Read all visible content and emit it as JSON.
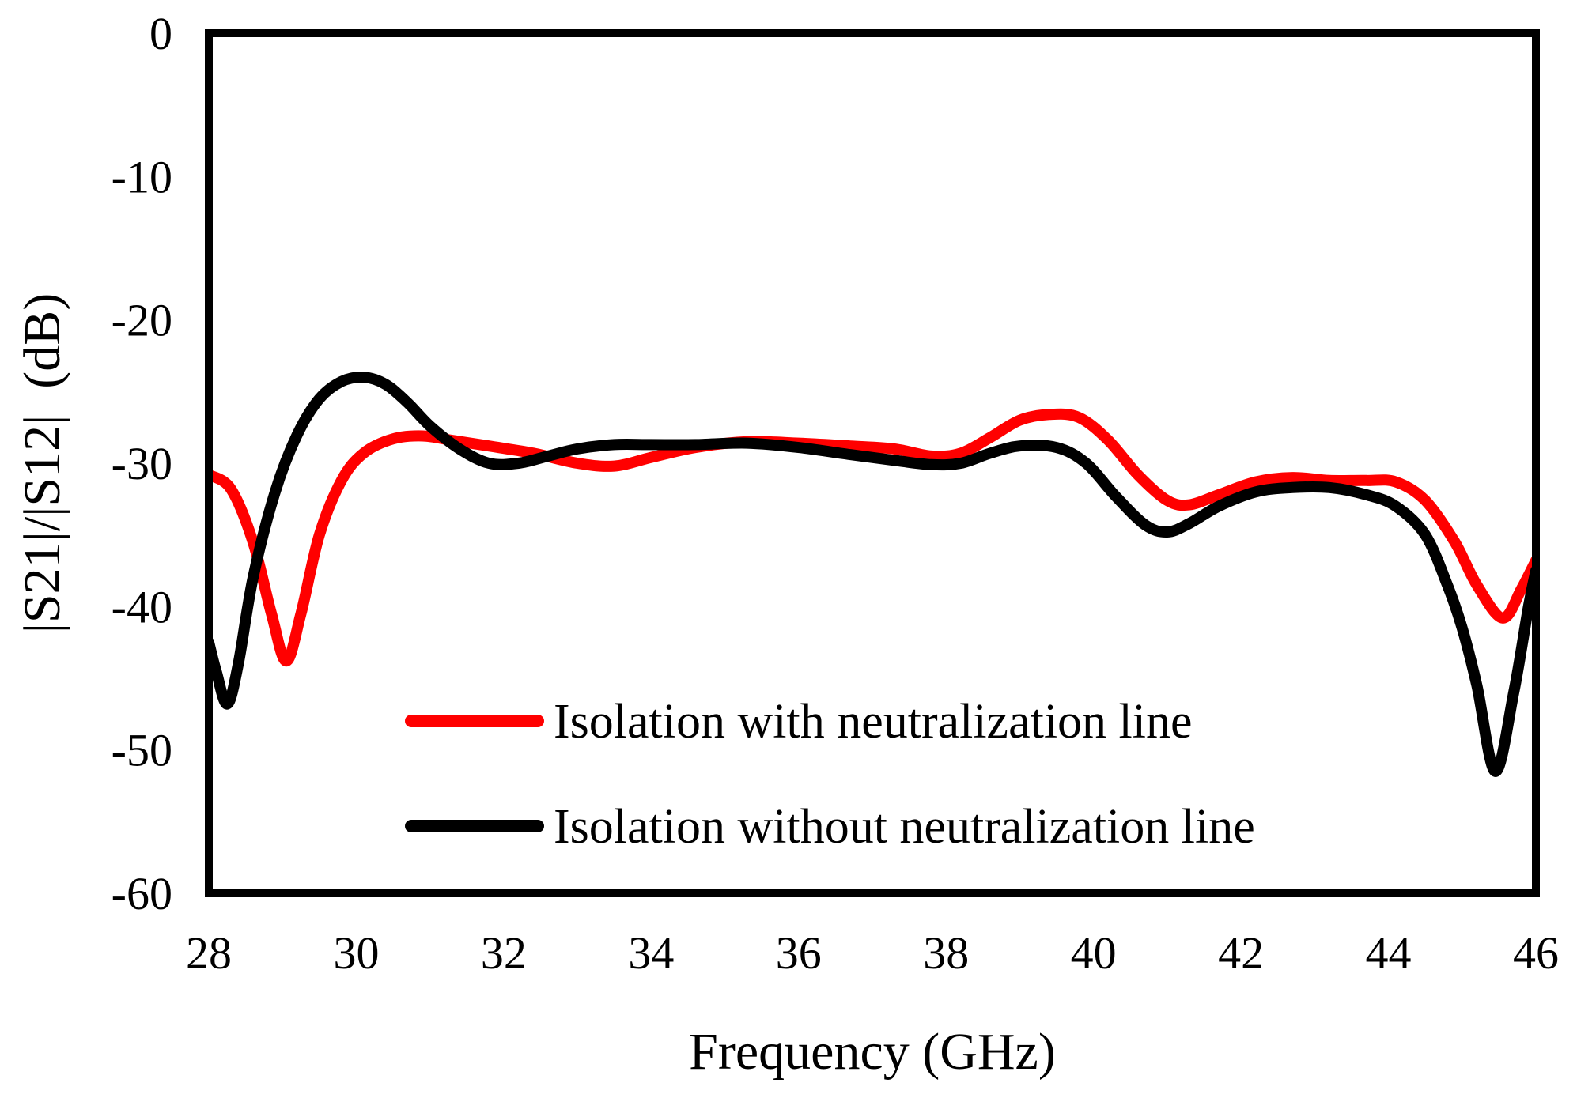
{
  "chart_data": {
    "type": "line",
    "title": "",
    "xlabel": "Frequency (GHz)",
    "ylabel": "|S21|/|S12|  (dB)",
    "xlim": [
      28,
      46
    ],
    "ylim": [
      -60,
      0
    ],
    "x_ticks": [
      28,
      30,
      32,
      34,
      36,
      38,
      40,
      42,
      44,
      46
    ],
    "y_ticks": [
      0,
      -10,
      -20,
      -30,
      -40,
      -50,
      -60
    ],
    "grid": false,
    "legend_position": "bottom-right",
    "series": [
      {
        "name": "Isolation with neutralization line",
        "color": "#ff0000",
        "x": [
          28.0,
          28.3,
          28.6,
          28.85,
          29.05,
          29.25,
          29.5,
          29.8,
          30.1,
          30.5,
          30.9,
          31.3,
          31.8,
          32.4,
          33.0,
          33.5,
          34.0,
          34.6,
          35.3,
          36.0,
          36.7,
          37.3,
          37.8,
          38.2,
          38.6,
          39.0,
          39.4,
          39.8,
          40.2,
          40.6,
          41.0,
          41.3,
          41.7,
          42.2,
          42.7,
          43.2,
          43.7,
          44.1,
          44.5,
          44.9,
          45.2,
          45.55,
          45.8,
          46.0
        ],
        "values": [
          -30.8,
          -31.8,
          -35.5,
          -40.5,
          -43.8,
          -40.5,
          -35.0,
          -31.2,
          -29.3,
          -28.3,
          -28.1,
          -28.4,
          -28.8,
          -29.3,
          -30.0,
          -30.2,
          -29.6,
          -28.9,
          -28.5,
          -28.6,
          -28.8,
          -29.0,
          -29.5,
          -29.3,
          -28.2,
          -27.0,
          -26.6,
          -26.8,
          -28.4,
          -30.8,
          -32.6,
          -32.9,
          -32.2,
          -31.3,
          -31.0,
          -31.2,
          -31.2,
          -31.3,
          -32.6,
          -35.5,
          -38.5,
          -40.8,
          -38.8,
          -36.8
        ]
      },
      {
        "name": "Isolation without neutralization line",
        "color": "#000000",
        "x": [
          28.0,
          28.1,
          28.25,
          28.4,
          28.6,
          28.9,
          29.2,
          29.5,
          29.8,
          30.1,
          30.4,
          30.7,
          31.0,
          31.4,
          31.8,
          32.2,
          32.6,
          33.0,
          33.5,
          34.0,
          34.6,
          35.3,
          36.0,
          36.7,
          37.3,
          37.8,
          38.2,
          38.6,
          39.0,
          39.5,
          39.9,
          40.3,
          40.7,
          41.0,
          41.3,
          41.7,
          42.2,
          42.7,
          43.2,
          43.7,
          44.1,
          44.5,
          44.8,
          45.0,
          45.2,
          45.45,
          45.7,
          45.9,
          46.0
        ],
        "values": [
          -42.5,
          -44.5,
          -46.8,
          -44.0,
          -38.0,
          -32.0,
          -28.0,
          -25.5,
          -24.3,
          -24.0,
          -24.5,
          -25.8,
          -27.4,
          -29.0,
          -30.0,
          -30.0,
          -29.5,
          -29.0,
          -28.7,
          -28.7,
          -28.7,
          -28.6,
          -28.9,
          -29.4,
          -29.8,
          -30.1,
          -30.0,
          -29.3,
          -28.8,
          -28.9,
          -30.0,
          -32.3,
          -34.3,
          -34.8,
          -34.2,
          -33.0,
          -32.0,
          -31.7,
          -31.7,
          -32.2,
          -33.0,
          -35.0,
          -38.5,
          -41.5,
          -45.5,
          -51.5,
          -46.0,
          -40.0,
          -37.5
        ]
      }
    ]
  }
}
